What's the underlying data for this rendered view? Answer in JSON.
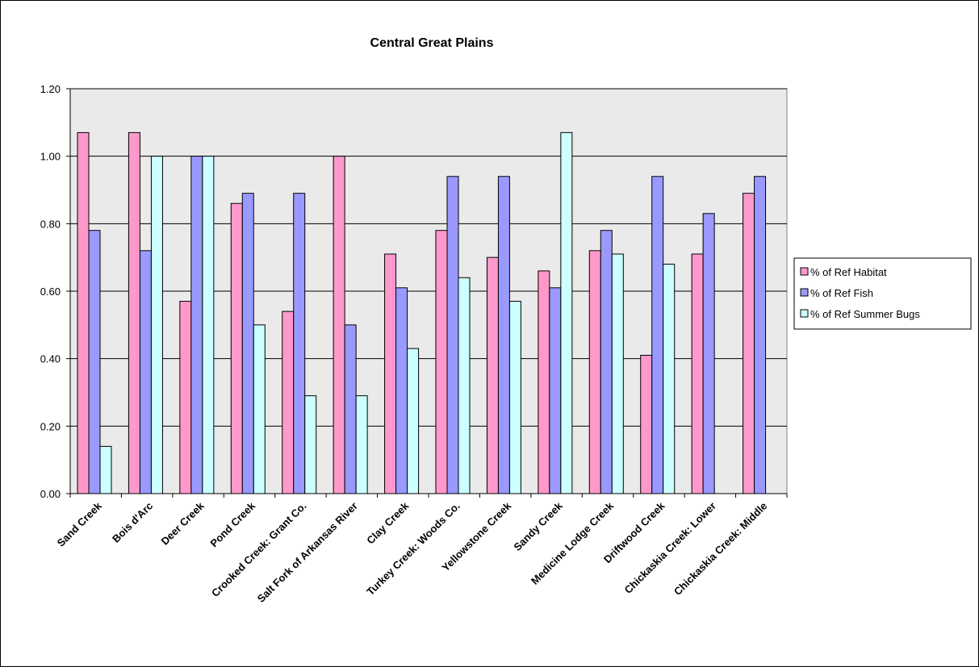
{
  "chart_data": {
    "type": "bar",
    "title": "Central Great Plains",
    "xlabel": "",
    "ylabel": "",
    "ylim": [
      0,
      1.2
    ],
    "yticks": [
      "0.00",
      "0.20",
      "0.40",
      "0.60",
      "0.80",
      "1.00",
      "1.20"
    ],
    "grid": true,
    "legend_position": "right",
    "categories": [
      "Sand Creek",
      "Bois d'Arc",
      "Deer Creek",
      "Pond Creek",
      "Crooked Creek: Grant Co.",
      "Salt Fork of Arkansas River",
      "Clay Creek",
      "Turkey Creek: Woods Co.",
      "Yellowstone Creek",
      "Sandy Creek",
      "Medicine Lodge Creek",
      "Driftwood Creek",
      "Chickaskia Creek: Lower",
      "Chickaskia Creek: Middle"
    ],
    "series": [
      {
        "name": "% of Ref Habitat",
        "color": "#ff99cc",
        "values": [
          1.07,
          1.07,
          0.57,
          0.86,
          0.54,
          1.0,
          0.71,
          0.78,
          0.7,
          0.66,
          0.72,
          0.41,
          0.71,
          0.89
        ]
      },
      {
        "name": "% of Ref Fish",
        "color": "#9999ff",
        "values": [
          0.78,
          0.72,
          1.0,
          0.89,
          0.89,
          0.5,
          0.61,
          0.94,
          0.94,
          0.61,
          0.78,
          0.94,
          0.83,
          0.94
        ]
      },
      {
        "name": "% of Ref Summer Bugs",
        "color": "#ccffff",
        "values": [
          0.14,
          1.0,
          1.0,
          0.5,
          0.29,
          0.29,
          0.43,
          0.64,
          0.57,
          1.07,
          0.71,
          0.68,
          null,
          null
        ]
      }
    ]
  },
  "colors": {
    "plot_background": "#eaeaea",
    "gridline": "#000000",
    "bar_outline": "#000000"
  }
}
